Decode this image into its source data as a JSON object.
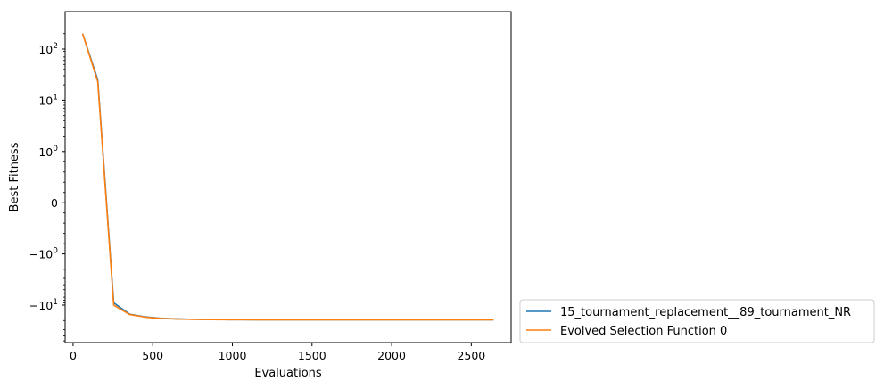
{
  "chart_data": {
    "type": "line",
    "title": "",
    "xlabel": "Evaluations",
    "ylabel": "Best Fitness",
    "xscale": "linear",
    "yscale": "symlog",
    "xlim": [
      -50,
      2750
    ],
    "xticks": [
      0,
      500,
      1000,
      1500,
      2000,
      2500
    ],
    "xtick_labels": [
      "0",
      "500",
      "1000",
      "1500",
      "2000",
      "2500"
    ],
    "yticks": [
      {
        "value": 100,
        "base": "10",
        "exp": "2",
        "neg": false
      },
      {
        "value": 10,
        "base": "10",
        "exp": "1",
        "neg": false
      },
      {
        "value": 1,
        "base": "10",
        "exp": "0",
        "neg": false
      },
      {
        "value": 0,
        "plain": "0"
      },
      {
        "value": -1,
        "base": "10",
        "exp": "0",
        "neg": true
      },
      {
        "value": -10,
        "base": "10",
        "exp": "1",
        "neg": true
      }
    ],
    "grid": false,
    "legend_position": "outside-lower-right",
    "series": [
      {
        "name": "15_tournament_replacement__89_tournament_NR",
        "color": "#1f77b4",
        "x": [
          60,
          155,
          255,
          355,
          455,
          555,
          655,
          755,
          855,
          955,
          1055,
          1155,
          1255,
          1355,
          1455,
          1555,
          1655,
          1755,
          1855,
          1955,
          2055,
          2155,
          2255,
          2355,
          2455,
          2555,
          2640
        ],
        "y": [
          200,
          25,
          -9,
          -15,
          -17,
          -18.1,
          -18.6,
          -18.9,
          -19.1,
          -19.2,
          -19.25,
          -19.3,
          -19.32,
          -19.34,
          -19.35,
          -19.36,
          -19.37,
          -19.37,
          -19.38,
          -19.38,
          -19.38,
          -19.38,
          -19.38,
          -19.38,
          -19.38,
          -19.38,
          -19.38
        ]
      },
      {
        "name": "Evolved Selection Function 0",
        "color": "#ff7f0e",
        "x": [
          60,
          155,
          255,
          355,
          455,
          555,
          655,
          755,
          855,
          955,
          1055,
          1155,
          1255,
          1355,
          1455,
          1555,
          1655,
          1755,
          1855,
          1955,
          2055,
          2155,
          2255,
          2355,
          2455,
          2555,
          2640
        ],
        "y": [
          200,
          23,
          -10,
          -15.3,
          -17.2,
          -18.2,
          -18.7,
          -19,
          -19.15,
          -19.22,
          -19.27,
          -19.31,
          -19.33,
          -19.35,
          -19.36,
          -19.37,
          -19.37,
          -19.38,
          -19.38,
          -19.38,
          -19.38,
          -19.38,
          -19.38,
          -19.38,
          -19.38,
          -19.38,
          -19.38
        ]
      }
    ]
  }
}
